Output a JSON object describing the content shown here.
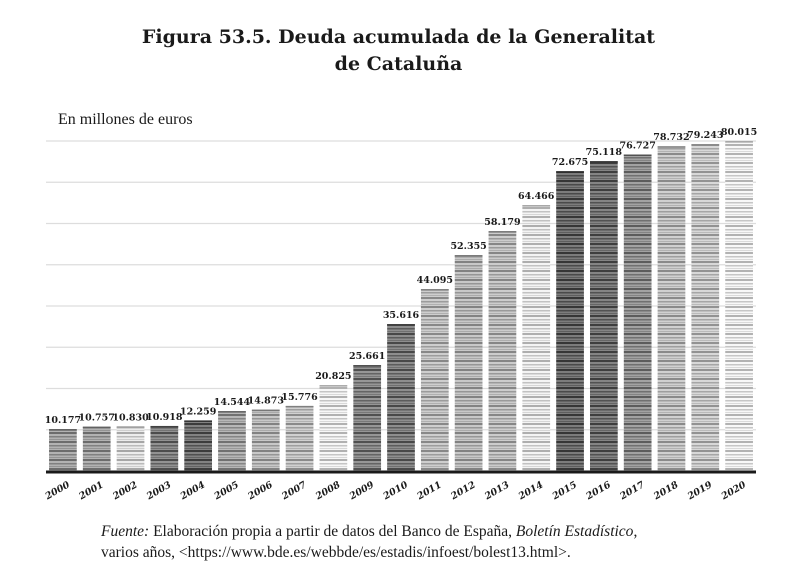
{
  "chart_data": {
    "type": "bar",
    "title_line1": "Figura 53.5.  Deuda acumulada de la Generalitat",
    "title_line2": "de Cataluña",
    "ylabel": "En millones de euros",
    "xlabel": "",
    "ylim": [
      0,
      80000
    ],
    "grid": true,
    "gridline_step": 10000,
    "categories": [
      "2000",
      "2001",
      "2002",
      "2003",
      "2004",
      "2005",
      "2006",
      "2007",
      "2008",
      "2009",
      "2010",
      "2011",
      "2012",
      "2013",
      "2014",
      "2015",
      "2016",
      "2017",
      "2018",
      "2019",
      "2020"
    ],
    "values": [
      10177,
      10757,
      10830,
      10918,
      12259,
      14544,
      14873,
      15776,
      20825,
      25661,
      35616,
      44095,
      52355,
      58179,
      64466,
      72675,
      75118,
      76727,
      78732,
      79243,
      80015
    ],
    "value_labels": [
      "10.177",
      "10.757",
      "10.830",
      "10.918",
      "12.259",
      "14.544",
      "14.873",
      "15.776",
      "20.825",
      "25.661",
      "35.616",
      "44.095",
      "52.355",
      "58.179",
      "64.466",
      "72.675",
      "75.118",
      "76.727",
      "78.732",
      "79.243",
      "80.015"
    ],
    "bar_tones": [
      "#8a8a8a",
      "#8a8a8a",
      "#c4c4c4",
      "#6a6a6a",
      "#5a5a5a",
      "#8f8f8f",
      "#a0a0a0",
      "#a8a8a8",
      "#cfcfcf",
      "#6e6e6e",
      "#666666",
      "#a6a6a6",
      "#a0a0a0",
      "#a4a4a4",
      "#cccccc",
      "#545454",
      "#5c5c5c",
      "#7a7a7a",
      "#a8a8a8",
      "#b0b0b0",
      "#d0d0d0"
    ]
  },
  "source": {
    "label": "Fuente:",
    "text1": " Elaboración propia a partir de datos del Banco de España, ",
    "publication": "Boletín Estadístico",
    "text2": ",",
    "line2": "varios años, <https://www.bde.es/webbde/es/estadis/infoest/bolest13.html>."
  },
  "colors": {
    "axis": "#1a1a1a",
    "grid": "#dddddd",
    "text": "#1a1a1a"
  }
}
